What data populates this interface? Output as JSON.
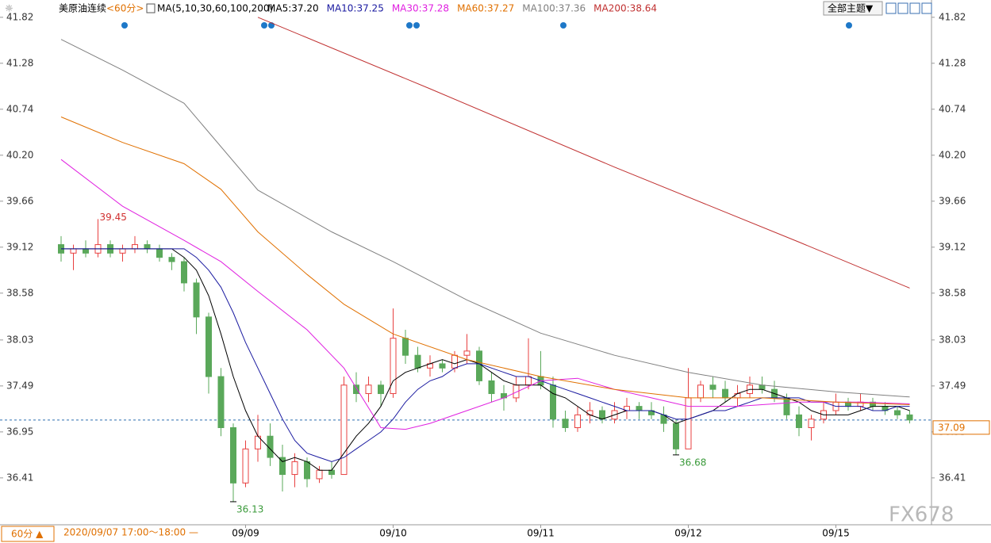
{
  "chart_data": {
    "type": "candlestick",
    "title": "美原油连续",
    "period": "<60分>",
    "indicator": "MA(5,10,30,60,100,200)",
    "theme_button": "全部主题▼",
    "footer_period": "60分 ▲",
    "footer_time": "2020/09/07 17:00～18:00 —",
    "watermark": "FX678",
    "up_color": "#e84040",
    "down_color": "#5aa85a",
    "current_price": 37.09,
    "ylim": [
      35.85,
      41.93
    ],
    "yticks": [
      41.82,
      41.28,
      40.74,
      {
        "value": 40.2,
        "label": "40.20"
      },
      39.66,
      39.12,
      38.58,
      38.03,
      37.49,
      36.95,
      36.41
    ],
    "categories": [
      null,
      null,
      null,
      null,
      null,
      null,
      null,
      null,
      null,
      null,
      null,
      null,
      null,
      null,
      null,
      "09/09",
      null,
      null,
      null,
      null,
      null,
      null,
      null,
      null,
      null,
      null,
      null,
      "09/10",
      null,
      null,
      null,
      null,
      null,
      null,
      null,
      null,
      null,
      null,
      null,
      "09/11",
      null,
      null,
      null,
      null,
      null,
      null,
      null,
      null,
      null,
      null,
      null,
      "09/12",
      null,
      null,
      null,
      null,
      null,
      null,
      null,
      null,
      null,
      null,
      null,
      "09/15",
      null,
      null,
      null,
      null,
      null,
      null
    ],
    "open": [
      39.15,
      39.05,
      39.1,
      39.05,
      39.15,
      39.05,
      39.1,
      39.15,
      39.1,
      39.0,
      38.95,
      38.7,
      38.3,
      37.6,
      37.0,
      36.35,
      36.75,
      36.9,
      36.65,
      36.45,
      36.6,
      36.4,
      36.5,
      36.45,
      37.5,
      37.4,
      37.5,
      37.4,
      38.05,
      37.85,
      37.7,
      37.75,
      37.7,
      37.85,
      37.9,
      37.55,
      37.4,
      37.35,
      37.5,
      37.6,
      37.5,
      37.1,
      37.0,
      37.15,
      37.2,
      37.1,
      37.2,
      37.25,
      37.2,
      37.15,
      37.05,
      36.75,
      37.35,
      37.5,
      37.45,
      37.35,
      37.4,
      37.5,
      37.45,
      37.35,
      37.15,
      37.0,
      37.1,
      37.2,
      37.3,
      37.25,
      37.3,
      37.25,
      37.2,
      37.15
    ],
    "high": [
      39.25,
      39.15,
      39.2,
      39.45,
      39.2,
      39.15,
      39.25,
      39.2,
      39.15,
      39.05,
      39.0,
      38.75,
      38.35,
      37.7,
      37.05,
      36.85,
      37.15,
      37.05,
      36.8,
      36.7,
      36.65,
      36.55,
      36.6,
      37.6,
      37.65,
      37.6,
      37.55,
      38.4,
      38.15,
      37.95,
      37.85,
      37.8,
      37.9,
      38.1,
      37.95,
      37.65,
      37.5,
      37.6,
      38.05,
      37.9,
      37.6,
      37.2,
      37.25,
      37.3,
      37.25,
      37.3,
      37.35,
      37.3,
      37.3,
      37.25,
      37.1,
      37.7,
      37.55,
      37.6,
      37.55,
      37.5,
      37.6,
      37.6,
      37.55,
      37.4,
      37.25,
      37.15,
      37.3,
      37.4,
      37.35,
      37.4,
      37.35,
      37.3,
      37.25,
      37.2
    ],
    "low": [
      38.95,
      38.85,
      39.0,
      39.0,
      39.0,
      38.95,
      39.05,
      39.05,
      38.95,
      38.85,
      38.6,
      38.1,
      37.4,
      36.9,
      36.13,
      36.3,
      36.6,
      36.55,
      36.25,
      36.3,
      36.3,
      36.35,
      36.4,
      36.45,
      37.3,
      37.3,
      37.25,
      37.35,
      37.75,
      37.65,
      37.6,
      37.65,
      37.65,
      37.75,
      37.5,
      37.3,
      37.2,
      37.3,
      37.45,
      37.45,
      37.0,
      36.95,
      36.95,
      37.05,
      37.05,
      37.05,
      37.1,
      37.1,
      37.1,
      36.95,
      36.68,
      36.75,
      37.3,
      37.35,
      37.3,
      37.25,
      37.35,
      37.4,
      37.3,
      37.1,
      36.9,
      36.85,
      37.05,
      37.15,
      37.2,
      37.2,
      37.2,
      37.15,
      37.1,
      37.05
    ],
    "close": [
      39.05,
      39.1,
      39.05,
      39.15,
      39.05,
      39.1,
      39.15,
      39.1,
      39.0,
      38.95,
      38.7,
      38.3,
      37.6,
      37.0,
      36.35,
      36.75,
      36.9,
      36.65,
      36.45,
      36.6,
      36.4,
      36.5,
      36.45,
      37.5,
      37.4,
      37.5,
      37.4,
      38.05,
      37.85,
      37.7,
      37.75,
      37.7,
      37.85,
      37.9,
      37.55,
      37.4,
      37.35,
      37.5,
      37.6,
      37.5,
      37.1,
      37.0,
      37.15,
      37.2,
      37.1,
      37.2,
      37.25,
      37.2,
      37.15,
      37.05,
      36.75,
      37.35,
      37.5,
      37.45,
      37.35,
      37.4,
      37.5,
      37.45,
      37.35,
      37.15,
      37.0,
      37.1,
      37.2,
      37.3,
      37.25,
      37.3,
      37.25,
      37.2,
      37.15,
      37.09
    ],
    "series": [
      {
        "name": "MA5:37.20",
        "color": "#000000",
        "x": [
          0,
          1,
          2,
          3,
          4,
          5,
          6,
          7,
          8,
          9,
          10,
          11,
          12,
          13,
          14,
          15,
          16,
          17,
          18,
          19,
          20,
          21,
          22,
          23,
          24,
          25,
          26,
          27,
          28,
          29,
          30,
          31,
          32,
          33,
          34,
          35,
          36,
          37,
          38,
          39,
          40,
          41,
          42,
          43,
          44,
          45,
          46,
          47,
          48,
          49,
          50,
          51,
          52,
          53,
          54,
          55,
          56,
          57,
          58,
          59,
          60,
          61,
          62,
          63,
          64,
          65,
          66,
          67,
          68,
          69
        ],
        "values": [
          39.1,
          39.1,
          39.1,
          39.1,
          39.1,
          39.1,
          39.1,
          39.1,
          39.1,
          39.1,
          39.0,
          38.85,
          38.55,
          38.1,
          37.6,
          37.2,
          36.9,
          36.75,
          36.6,
          36.65,
          36.6,
          36.5,
          36.5,
          36.7,
          36.9,
          37.05,
          37.25,
          37.55,
          37.65,
          37.7,
          37.75,
          37.8,
          37.75,
          37.8,
          37.75,
          37.65,
          37.55,
          37.5,
          37.5,
          37.5,
          37.4,
          37.35,
          37.25,
          37.15,
          37.1,
          37.15,
          37.2,
          37.2,
          37.2,
          37.15,
          37.05,
          37.1,
          37.15,
          37.2,
          37.3,
          37.4,
          37.45,
          37.45,
          37.4,
          37.35,
          37.3,
          37.2,
          37.15,
          37.15,
          37.15,
          37.2,
          37.25,
          37.25,
          37.25,
          37.2
        ]
      },
      {
        "name": "MA10:37.25",
        "color": "#1a1aa0",
        "x": [
          0,
          1,
          2,
          3,
          4,
          5,
          6,
          7,
          8,
          9,
          10,
          11,
          12,
          13,
          14,
          15,
          16,
          17,
          18,
          19,
          20,
          21,
          22,
          23,
          24,
          25,
          26,
          27,
          28,
          29,
          30,
          31,
          32,
          33,
          34,
          35,
          36,
          37,
          38,
          39,
          40,
          41,
          42,
          43,
          44,
          45,
          46,
          47,
          48,
          49,
          50,
          51,
          52,
          53,
          54,
          55,
          56,
          57,
          58,
          59,
          60,
          61,
          62,
          63,
          64,
          65,
          66,
          67,
          68,
          69
        ],
        "values": [
          39.1,
          39.1,
          39.1,
          39.1,
          39.1,
          39.1,
          39.1,
          39.1,
          39.1,
          39.1,
          39.1,
          39.0,
          38.85,
          38.65,
          38.35,
          38.0,
          37.7,
          37.4,
          37.1,
          36.85,
          36.7,
          36.65,
          36.6,
          36.65,
          36.75,
          36.85,
          36.95,
          37.1,
          37.3,
          37.45,
          37.55,
          37.6,
          37.7,
          37.75,
          37.75,
          37.7,
          37.65,
          37.6,
          37.6,
          37.55,
          37.5,
          37.45,
          37.4,
          37.35,
          37.3,
          37.25,
          37.2,
          37.2,
          37.2,
          37.15,
          37.1,
          37.1,
          37.15,
          37.2,
          37.2,
          37.25,
          37.3,
          37.35,
          37.35,
          37.35,
          37.35,
          37.3,
          37.3,
          37.25,
          37.25,
          37.25,
          37.2,
          37.2,
          37.25,
          37.25
        ]
      },
      {
        "name": "MA30:37.28",
        "color": "#e020e0",
        "x": [
          0,
          5,
          10,
          13,
          16,
          20,
          23,
          26,
          28,
          30,
          33,
          36,
          39,
          42,
          45,
          48,
          51,
          55,
          60,
          65,
          69
        ],
        "values": [
          40.15,
          39.6,
          39.2,
          38.95,
          38.6,
          38.15,
          37.7,
          37.0,
          36.98,
          37.05,
          37.2,
          37.35,
          37.55,
          37.58,
          37.45,
          37.35,
          37.25,
          37.25,
          37.3,
          37.3,
          37.28
        ]
      },
      {
        "name": "MA60:37.27",
        "color": "#e07000",
        "x": [
          0,
          5,
          10,
          13,
          16,
          20,
          23,
          27,
          33,
          39,
          45,
          51,
          57,
          63,
          69
        ],
        "values": [
          40.65,
          40.35,
          40.1,
          39.8,
          39.3,
          38.8,
          38.45,
          38.1,
          37.8,
          37.6,
          37.45,
          37.35,
          37.35,
          37.3,
          37.27
        ]
      },
      {
        "name": "MA100:37.36",
        "color": "#808080",
        "x": [
          0,
          5,
          10,
          16,
          22,
          27,
          33,
          39,
          45,
          51,
          57,
          63,
          69
        ],
        "values": [
          41.56,
          41.2,
          40.81,
          39.79,
          39.3,
          38.95,
          38.5,
          38.11,
          37.85,
          37.65,
          37.5,
          37.42,
          37.36
        ]
      },
      {
        "name": "MA200:38.64",
        "color": "#c03030",
        "x": [
          16,
          30,
          45,
          60,
          69
        ],
        "values": [
          41.82,
          40.98,
          40.06,
          39.18,
          38.64
        ]
      }
    ]
  }
}
